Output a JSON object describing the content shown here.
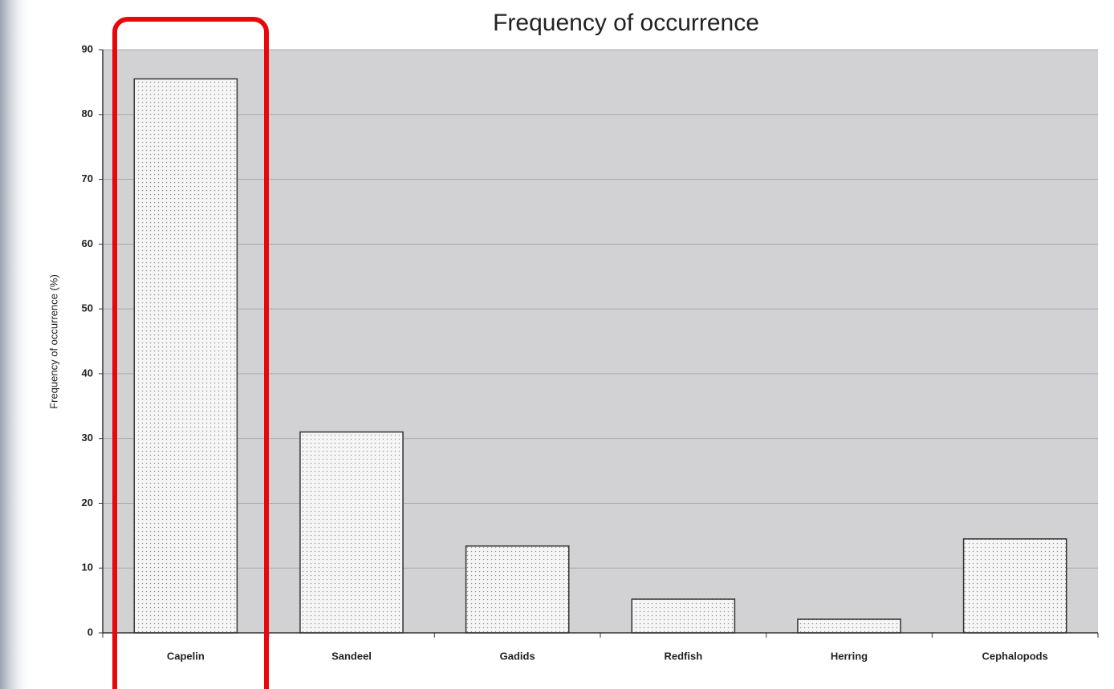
{
  "chart_data": {
    "type": "bar",
    "title": "Frequency of occurrence",
    "y_label": "Frequency of occurrence (%)",
    "categories": [
      "Capelin",
      "Sandeel",
      "Gadids",
      "Redfish",
      "Herring",
      "Cephalopods"
    ],
    "values": [
      85.5,
      31,
      13.4,
      5.2,
      2.1,
      14.5
    ],
    "color": "#f4f4f4",
    "ylim": [
      0,
      90
    ],
    "yticks": [
      0,
      10,
      20,
      30,
      40,
      50,
      60,
      70,
      80,
      90
    ],
    "grid": true
  }
}
